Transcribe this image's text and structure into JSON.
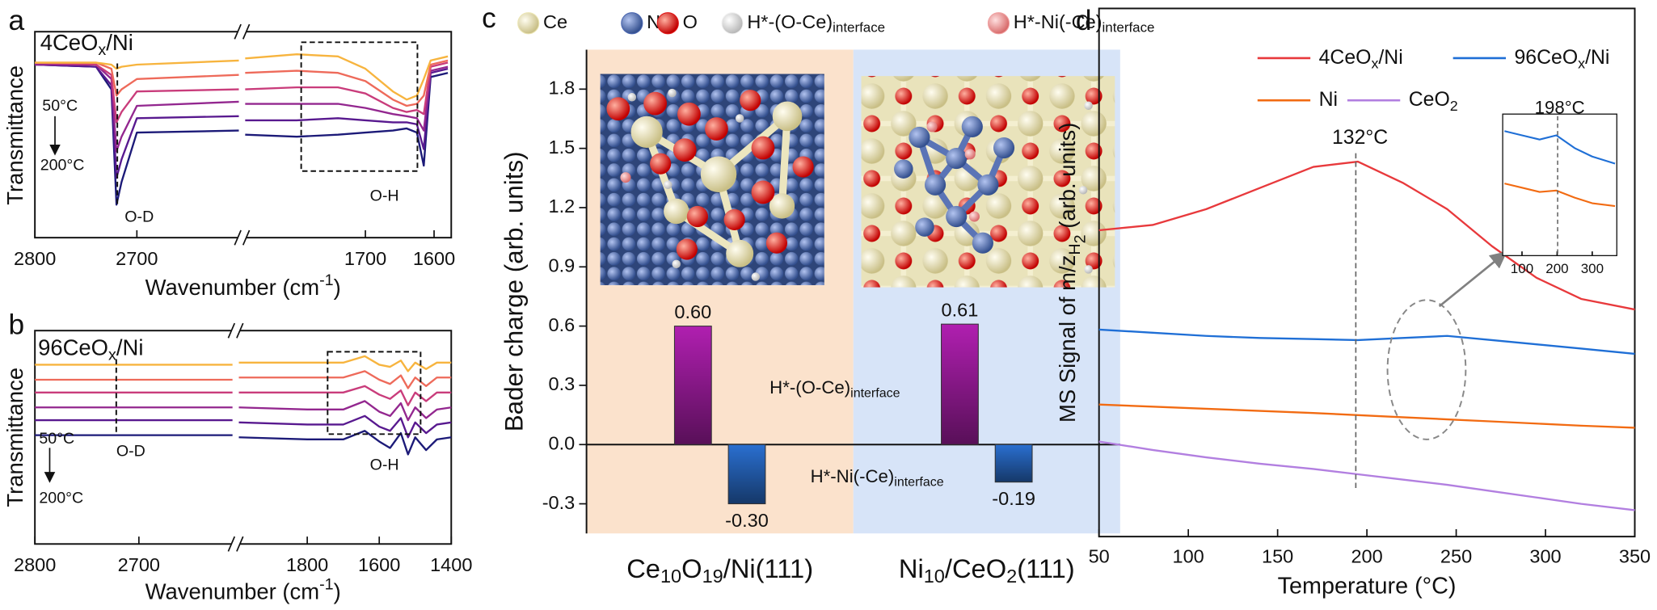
{
  "chart_data": [
    {
      "type": "line",
      "panel_label": "a",
      "title": [
        "4CeO",
        "x",
        "/Ni"
      ],
      "title_color": "#e8413c",
      "ylabel": "Transmittance",
      "xlabel": [
        "Wavenumber (cm",
        "-1",
        ")"
      ],
      "annotations": [
        "50°C",
        "200°C",
        "O-D",
        "O-H"
      ],
      "xlim": [
        2800,
        1575
      ],
      "xbreak": [
        2600,
        1875
      ],
      "xticks": [
        2800,
        2700,
        1700,
        1600
      ],
      "ylim": [
        0,
        100
      ],
      "x": [
        2800,
        2740,
        2725,
        2720,
        2715,
        2700,
        2600,
        1875,
        1800,
        1740,
        1700,
        1660,
        1640,
        1625,
        1615,
        1605,
        1580
      ],
      "series": [
        {
          "color": "#1c1a78",
          "values": [
            84,
            83,
            72,
            16,
            27,
            51,
            52,
            50,
            49,
            50,
            51,
            52,
            53,
            51,
            35,
            78,
            80
          ]
        },
        {
          "color": "#58198f",
          "values": [
            84,
            83,
            74,
            29,
            38,
            58,
            59,
            57,
            57,
            58,
            57,
            56,
            56,
            55,
            43,
            80,
            82
          ]
        },
        {
          "color": "#93278f",
          "values": [
            84,
            84,
            77,
            42,
            49,
            64,
            66,
            65,
            65,
            65,
            63,
            60,
            59,
            58,
            52,
            81,
            83
          ]
        },
        {
          "color": "#c93c7b",
          "values": [
            85,
            84,
            79,
            56,
            61,
            71,
            72,
            72,
            73,
            73,
            70,
            63,
            61,
            62,
            60,
            83,
            85
          ]
        },
        {
          "color": "#ee6a5a",
          "values": [
            85,
            85,
            82,
            69,
            72,
            77,
            79,
            80,
            81,
            80,
            76,
            67,
            64,
            65,
            69,
            84,
            86
          ]
        },
        {
          "color": "#f7b43e",
          "values": [
            85,
            85,
            84,
            82,
            83,
            84,
            86,
            87,
            89,
            88,
            82,
            71,
            67,
            69,
            77,
            86,
            88
          ]
        }
      ]
    },
    {
      "type": "line",
      "panel_label": "b",
      "title": [
        "96CeO",
        "x",
        "/Ni"
      ],
      "title_color": "#2f7de1",
      "ylabel": "Transmittance",
      "xlabel": [
        "Wavenumber (cm",
        "-1",
        ")"
      ],
      "annotations": [
        "50°C",
        "200°C",
        "O-D",
        "O-H"
      ],
      "xlim": [
        2800,
        1400
      ],
      "xbreak": [
        2610,
        1990
      ],
      "xticks": [
        2800,
        2700,
        1800,
        1600,
        1400
      ],
      "ylim": [
        0,
        100
      ],
      "x": [
        2800,
        2700,
        2610,
        1990,
        1800,
        1700,
        1640,
        1600,
        1570,
        1540,
        1520,
        1500,
        1470,
        1440,
        1400
      ],
      "series": [
        {
          "color": "#1c1a78",
          "values": [
            51,
            51,
            51,
            50,
            49,
            49,
            53,
            48,
            45,
            52,
            42,
            50,
            44,
            49,
            50
          ]
        },
        {
          "color": "#58198f",
          "values": [
            58,
            58,
            58,
            57,
            56,
            56,
            60,
            55,
            53,
            59,
            50,
            57,
            52,
            56,
            57
          ]
        },
        {
          "color": "#93278f",
          "values": [
            64,
            64,
            64,
            64,
            63,
            63,
            67,
            62,
            60,
            66,
            58,
            64,
            59,
            63,
            64
          ]
        },
        {
          "color": "#c93c7b",
          "values": [
            71,
            71,
            71,
            71,
            71,
            71,
            74,
            70,
            68,
            72,
            65,
            71,
            67,
            71,
            71
          ]
        },
        {
          "color": "#ee6a5a",
          "values": [
            77,
            77,
            77,
            78,
            78,
            78,
            81,
            77,
            75,
            79,
            73,
            78,
            74,
            78,
            78
          ]
        },
        {
          "color": "#f7b43e",
          "values": [
            84,
            84,
            84,
            85,
            85,
            85,
            88,
            84,
            83,
            86,
            81,
            85,
            82,
            85,
            85
          ]
        }
      ]
    },
    {
      "type": "bar",
      "panel_label": "c",
      "ylabel": "Bader charge (arb. units)",
      "legend_items": [
        {
          "label": [
            "Ce"
          ],
          "color": "#ece6b4"
        },
        {
          "label": [
            "Ni"
          ],
          "color": "#4a66b0"
        },
        {
          "label": [
            "O"
          ],
          "color": "#e01818"
        },
        {
          "label": [
            "H*-(O-Ce)",
            "interface"
          ],
          "color": "#f2f2f2"
        },
        {
          "label": [
            "H*-Ni(-Ce)",
            "interface"
          ],
          "color": "#f0a0a0"
        }
      ],
      "categories": [
        [
          "Ce",
          "10",
          "O",
          "19",
          "/Ni(111)"
        ],
        [
          "Ni",
          "10",
          "/CeO",
          "2",
          "(111)"
        ]
      ],
      "category_colors": [
        "#fbe2cc",
        "#d7e4f8"
      ],
      "ylim": [
        -0.45,
        2.0
      ],
      "yticks": [
        -0.3,
        {
          "value": 0,
          "label": "0.0"
        },
        0.3,
        0.6,
        0.9,
        1.2,
        1.5,
        1.8
      ],
      "series": [
        {
          "name": [
            "H*-(O-Ce)",
            "interface"
          ],
          "color": "#b01fb0",
          "values": [
            0.6,
            0.61
          ],
          "value_labels": [
            "0.60",
            "0.61"
          ]
        },
        {
          "name": [
            "H*-Ni(-Ce)",
            "interface"
          ],
          "color": "#2a6fd0",
          "values": [
            -0.3,
            -0.19
          ],
          "value_labels": [
            "-0.30",
            "-0.19"
          ]
        }
      ]
    },
    {
      "type": "line",
      "panel_label": "d",
      "ylabel": [
        "MS Signal of m/z",
        "H",
        "2",
        " (arb. units)"
      ],
      "xlabel": "Temperature (°C)",
      "annotations": [
        "132°C"
      ],
      "xlim": [
        50,
        350
      ],
      "xticks": [
        50,
        100,
        150,
        200,
        250,
        300,
        350
      ],
      "ylim": [
        0,
        100
      ],
      "x": [
        50,
        80,
        110,
        140,
        170,
        195,
        220,
        245,
        270,
        295,
        320,
        350
      ],
      "series": [
        {
          "name": [
            "4CeO",
            "x",
            "/Ni"
          ],
          "color": "#e8393c",
          "values": [
            58,
            59,
            62,
            66,
            70,
            71,
            67,
            62,
            55,
            49,
            45,
            43
          ]
        },
        {
          "name": [
            "96CeO",
            "x",
            "/Ni"
          ],
          "color": "#1f6fd6",
          "values": [
            39.2,
            38.6,
            38,
            37.6,
            37.4,
            37.2,
            37.6,
            38,
            37.2,
            36.4,
            35.6,
            34.6
          ]
        },
        {
          "name": [
            "Ni"
          ],
          "color": "#f26b12",
          "values": [
            25,
            24.6,
            24.2,
            23.8,
            23.4,
            23,
            22.6,
            22.2,
            21.8,
            21.4,
            21,
            20.6
          ]
        },
        {
          "name": [
            "CeO",
            "2"
          ],
          "color": "#b27fe0",
          "values": [
            18,
            16.4,
            15,
            13.8,
            12.8,
            11.8,
            10.8,
            9.8,
            8.6,
            7.4,
            6.2,
            5
          ]
        }
      ]
    },
    {
      "type": "line",
      "annotations": [
        "198°C"
      ],
      "xlim": [
        45,
        370
      ],
      "xticks": [
        100,
        200,
        300
      ],
      "ylim": [
        0,
        100
      ],
      "x": [
        50,
        100,
        150,
        198,
        250,
        300,
        365
      ],
      "series": [
        {
          "color": "#1f6fd6",
          "values": [
            88,
            85,
            82,
            85,
            76,
            70,
            65
          ]
        },
        {
          "color": "#f26b12",
          "values": [
            51,
            48,
            45,
            46,
            41,
            37,
            35
          ]
        }
      ]
    }
  ]
}
